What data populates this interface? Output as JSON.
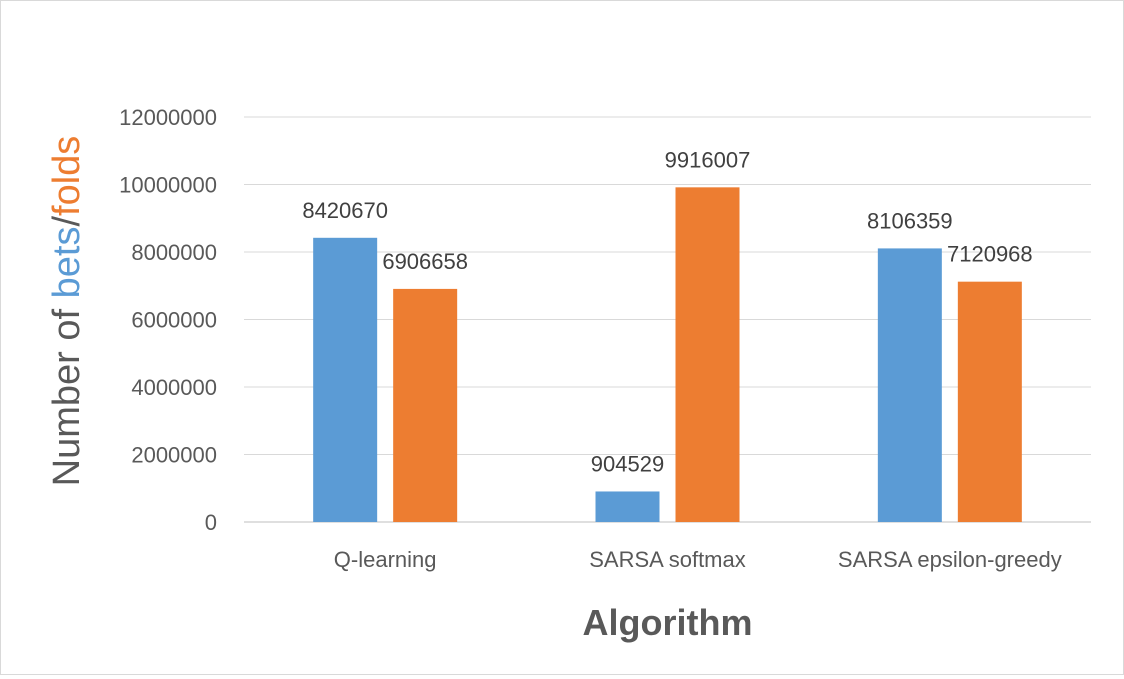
{
  "chart_data": {
    "type": "bar",
    "categories": [
      "Q-learning",
      "SARSA softmax",
      "SARSA epsilon-greedy"
    ],
    "series": [
      {
        "values": [
          8420670,
          904529,
          8106359
        ],
        "color": "#5b9bd5"
      },
      {
        "values": [
          6906658,
          9916007,
          7120968
        ],
        "color": "#ed7d31"
      }
    ],
    "ylim": [
      0,
      12000000
    ],
    "yticks": [
      0,
      2000000,
      4000000,
      6000000,
      8000000,
      10000000,
      12000000
    ],
    "ytick_labels": [
      "0",
      "2000000",
      "4000000",
      "6000000",
      "8000000",
      "10000000",
      "12000000"
    ],
    "ylabel_parts": [
      {
        "text": "Number of ",
        "color": "#595959"
      },
      {
        "text": "bets",
        "color": "#5b9bd5"
      },
      {
        "text": "/",
        "color": "#595959"
      },
      {
        "text": "folds",
        "color": "#ed7d31"
      }
    ],
    "xlabel": "Algorithm",
    "grid": true,
    "data_labels": true
  }
}
